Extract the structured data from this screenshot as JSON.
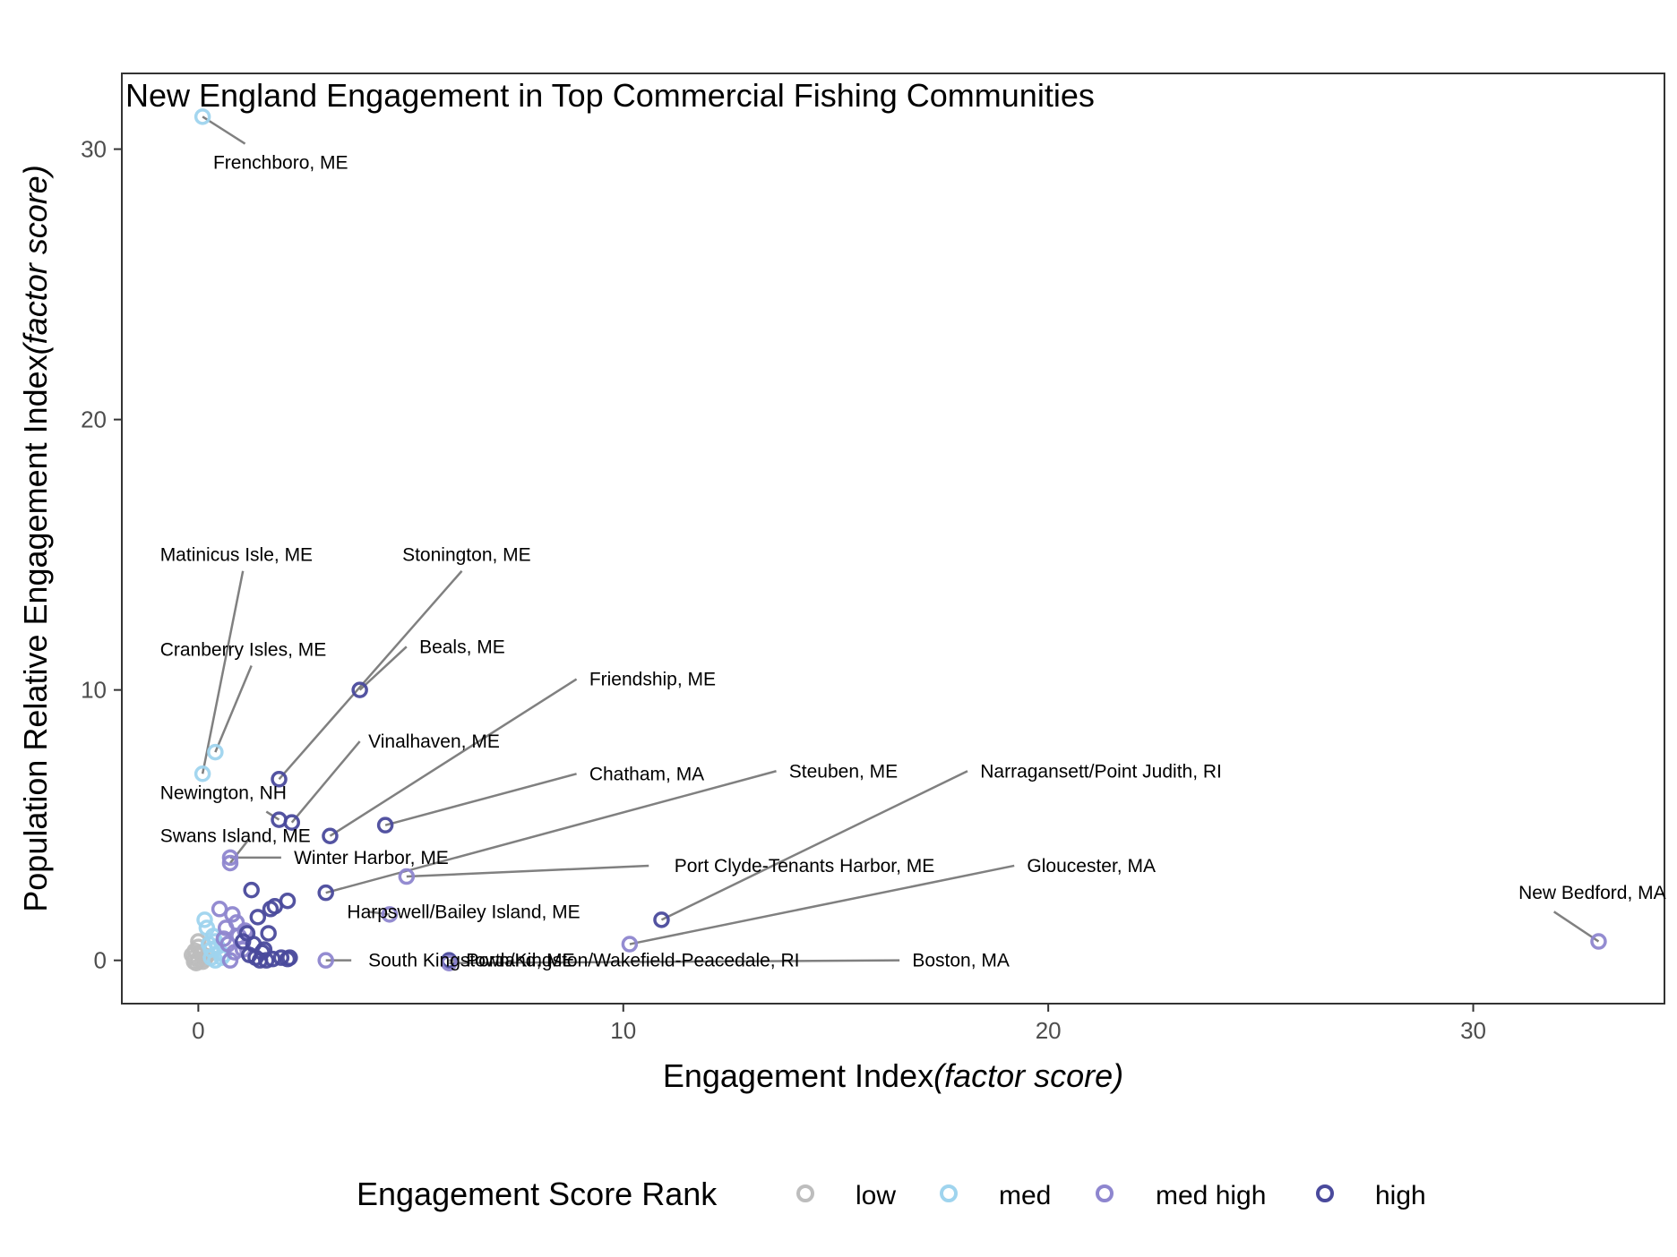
{
  "chart_data": {
    "type": "scatter",
    "title": "New England Engagement in Top Commercial Fishing Communities",
    "xlabel": "Engagement Index",
    "xlabel_italic": "(factor score)",
    "ylabel": "Population Relative Engagement Index",
    "ylabel_italic": "(factor score)",
    "xlim": [
      -1.8,
      34.5
    ],
    "ylim": [
      -1.6,
      32.8
    ],
    "x_ticks": [
      0,
      10,
      20,
      30
    ],
    "y_ticks": [
      0,
      10,
      20,
      30
    ],
    "grid": false,
    "legend_position": "bottom",
    "legend": {
      "title": "Engagement Score Rank",
      "entries": [
        {
          "key": "low",
          "label": "low",
          "color": "#bdbdbd"
        },
        {
          "key": "med",
          "label": "med",
          "color": "#9fd4ee"
        },
        {
          "key": "medhigh",
          "label": "med high",
          "color": "#8e86cf"
        },
        {
          "key": "high",
          "label": "high",
          "color": "#4a4a9c"
        }
      ]
    },
    "points": [
      {
        "x": 0.1,
        "y": 31.2,
        "rank": "med",
        "label": "Frenchboro, ME",
        "lx": 0.35,
        "ly": 29.5,
        "ax": "start",
        "cx": 1.1,
        "cy": 30.2
      },
      {
        "x": 0.1,
        "y": 6.9,
        "rank": "med",
        "label": "Matinicus Isle, ME",
        "lx": -0.9,
        "ly": 15.0,
        "ax": "start",
        "cx": 1.05,
        "cy": 14.4
      },
      {
        "x": 0.4,
        "y": 7.7,
        "rank": "med",
        "label": "Cranberry Isles, ME",
        "lx": -0.9,
        "ly": 11.5,
        "ax": "start",
        "cx": 1.25,
        "cy": 10.9
      },
      {
        "x": 3.8,
        "y": 10.0,
        "rank": "high",
        "label": "Beals, ME",
        "lx": 5.2,
        "ly": 11.6,
        "ax": "start",
        "cx": 4.9,
        "cy": 11.6
      },
      {
        "x": 1.9,
        "y": 6.7,
        "rank": "high",
        "label": "Stonington, ME",
        "lx": 4.8,
        "ly": 15.0,
        "ax": "start",
        "cx": 6.2,
        "cy": 14.4
      },
      {
        "x": 3.1,
        "y": 4.6,
        "rank": "high",
        "label": "Friendship, ME",
        "lx": 9.2,
        "ly": 10.4,
        "ax": "start",
        "cx": 8.9,
        "cy": 10.4
      },
      {
        "x": 2.2,
        "y": 5.1,
        "rank": "high",
        "label": "Vinalhaven, ME",
        "lx": 4.0,
        "ly": 8.1,
        "ax": "start",
        "cx": 3.8,
        "cy": 8.1
      },
      {
        "x": 4.4,
        "y": 5.0,
        "rank": "high",
        "label": "Chatham, MA",
        "lx": 9.2,
        "ly": 6.9,
        "ax": "start",
        "cx": 8.9,
        "cy": 6.9
      },
      {
        "x": 3.0,
        "y": 2.5,
        "rank": "high",
        "label": "Steuben, ME",
        "lx": 13.9,
        "ly": 7.0,
        "ax": "start",
        "cx": 13.6,
        "cy": 7.0
      },
      {
        "x": 10.9,
        "y": 1.5,
        "rank": "high",
        "label": "Narragansett/Point Judith, RI",
        "lx": 18.4,
        "ly": 7.0,
        "ax": "start",
        "cx": 18.1,
        "cy": 7.0
      },
      {
        "x": 1.9,
        "y": 5.2,
        "rank": "high",
        "label": "Newington, NH",
        "lx": -0.9,
        "ly": 6.2,
        "ax": "start",
        "cx": 1.6,
        "cy": 5.5
      },
      {
        "x": 0.75,
        "y": 3.6,
        "rank": "medhigh",
        "label": "Swans Island, ME",
        "lx": -0.9,
        "ly": 4.6,
        "ax": "start",
        "cx": 1.2,
        "cy": 4.5
      },
      {
        "x": 0.75,
        "y": 3.8,
        "rank": "medhigh",
        "label": "Winter Harbor, ME",
        "lx": 2.25,
        "ly": 3.8,
        "ax": "start",
        "cx": 1.95,
        "cy": 3.8
      },
      {
        "x": 4.9,
        "y": 3.1,
        "rank": "medhigh",
        "label": "Port Clyde-Tenants Harbor, ME",
        "lx": 11.2,
        "ly": 3.5,
        "ax": "start",
        "cx": 10.6,
        "cy": 3.5
      },
      {
        "x": 10.15,
        "y": 0.6,
        "rank": "medhigh",
        "label": "Gloucester, MA",
        "lx": 19.5,
        "ly": 3.5,
        "ax": "start",
        "cx": 19.2,
        "cy": 3.5
      },
      {
        "x": 4.5,
        "y": 1.7,
        "rank": "medhigh",
        "label": "Harpswell/Bailey Island, ME",
        "lx": 3.5,
        "ly": 1.8,
        "ax": "start",
        "cx": 4.0,
        "cy": 1.8
      },
      {
        "x": 32.95,
        "y": 0.7,
        "rank": "medhigh",
        "label": "New Bedford, MA",
        "lx": 32.8,
        "ly": 2.5,
        "ax": "middle",
        "cx": 31.9,
        "cy": 1.8
      },
      {
        "x": 3.0,
        "y": 0.0,
        "rank": "medhigh",
        "label": "South Kingstown/Kingston/Wakefield-Peacedale, RI",
        "lx": 4.0,
        "ly": 0.0,
        "ax": "start",
        "cx": 3.6,
        "cy": 0.0
      },
      {
        "x": 5.9,
        "y": 0.0,
        "rank": "high",
        "label": "Portland, ME",
        "lx": 6.3,
        "ly": 0.0,
        "ax": "start",
        "cx": 6.1,
        "cy": 0.0
      },
      {
        "x": 5.9,
        "y": -0.1,
        "rank": "medhigh",
        "label": "Boston, MA",
        "lx": 16.8,
        "ly": 0.0,
        "ax": "start",
        "cx": 16.5,
        "cy": 0.0
      },
      {
        "x": 0.0,
        "y": 0.0,
        "rank": "low"
      },
      {
        "x": -0.1,
        "y": 0.1,
        "rank": "low"
      },
      {
        "x": 0.05,
        "y": 0.3,
        "rank": "low"
      },
      {
        "x": -0.05,
        "y": -0.1,
        "rank": "low"
      },
      {
        "x": 0.15,
        "y": 0.05,
        "rank": "low"
      },
      {
        "x": -0.15,
        "y": 0.2,
        "rank": "low"
      },
      {
        "x": 0.0,
        "y": 0.5,
        "rank": "low"
      },
      {
        "x": 0.1,
        "y": -0.05,
        "rank": "low"
      },
      {
        "x": -0.1,
        "y": -0.05,
        "rank": "low"
      },
      {
        "x": 0.2,
        "y": 0.15,
        "rank": "low"
      },
      {
        "x": 0.0,
        "y": 0.7,
        "rank": "low"
      },
      {
        "x": 0.08,
        "y": 0.2,
        "rank": "low"
      },
      {
        "x": -0.08,
        "y": 0.35,
        "rank": "low"
      },
      {
        "x": 0.3,
        "y": 0.1,
        "rank": "med"
      },
      {
        "x": 0.4,
        "y": 0.0,
        "rank": "med"
      },
      {
        "x": 0.5,
        "y": 0.3,
        "rank": "med"
      },
      {
        "x": 0.25,
        "y": 0.6,
        "rank": "med"
      },
      {
        "x": 0.35,
        "y": 0.9,
        "rank": "med"
      },
      {
        "x": 0.2,
        "y": 1.2,
        "rank": "med"
      },
      {
        "x": 0.15,
        "y": 1.5,
        "rank": "med"
      },
      {
        "x": 0.45,
        "y": 0.5,
        "rank": "med"
      },
      {
        "x": 0.55,
        "y": 0.1,
        "rank": "med"
      },
      {
        "x": 0.3,
        "y": 0.4,
        "rank": "med"
      },
      {
        "x": 0.4,
        "y": 0.7,
        "rank": "med"
      },
      {
        "x": 0.6,
        "y": 0.2,
        "rank": "med"
      },
      {
        "x": 0.5,
        "y": 1.9,
        "rank": "medhigh"
      },
      {
        "x": 0.8,
        "y": 1.7,
        "rank": "medhigh"
      },
      {
        "x": 0.65,
        "y": 1.2,
        "rank": "medhigh"
      },
      {
        "x": 0.9,
        "y": 1.4,
        "rank": "medhigh"
      },
      {
        "x": 0.7,
        "y": 0.6,
        "rank": "medhigh"
      },
      {
        "x": 0.85,
        "y": 0.3,
        "rank": "medhigh"
      },
      {
        "x": 0.95,
        "y": 0.9,
        "rank": "medhigh"
      },
      {
        "x": 1.05,
        "y": 0.4,
        "rank": "medhigh"
      },
      {
        "x": 0.75,
        "y": 0.0,
        "rank": "medhigh"
      },
      {
        "x": 1.1,
        "y": 1.1,
        "rank": "medhigh"
      },
      {
        "x": 0.6,
        "y": 0.8,
        "rank": "medhigh"
      },
      {
        "x": 1.25,
        "y": 2.6,
        "rank": "high"
      },
      {
        "x": 1.4,
        "y": 1.6,
        "rank": "high"
      },
      {
        "x": 1.15,
        "y": 1.0,
        "rank": "high"
      },
      {
        "x": 1.7,
        "y": 1.9,
        "rank": "high"
      },
      {
        "x": 1.8,
        "y": 2.0,
        "rank": "high"
      },
      {
        "x": 2.1,
        "y": 2.2,
        "rank": "high"
      },
      {
        "x": 1.65,
        "y": 1.0,
        "rank": "high"
      },
      {
        "x": 1.3,
        "y": 0.6,
        "rank": "high"
      },
      {
        "x": 1.5,
        "y": 0.3,
        "rank": "high"
      },
      {
        "x": 1.45,
        "y": 0.0,
        "rank": "high"
      },
      {
        "x": 1.35,
        "y": 0.1,
        "rank": "high"
      },
      {
        "x": 1.6,
        "y": 0.0,
        "rank": "high"
      },
      {
        "x": 1.75,
        "y": 0.05,
        "rank": "high"
      },
      {
        "x": 1.95,
        "y": 0.1,
        "rank": "high"
      },
      {
        "x": 2.1,
        "y": 0.05,
        "rank": "high"
      },
      {
        "x": 2.15,
        "y": 0.1,
        "rank": "high"
      },
      {
        "x": 1.2,
        "y": 0.2,
        "rank": "high"
      },
      {
        "x": 1.05,
        "y": 0.7,
        "rank": "high"
      },
      {
        "x": 1.55,
        "y": 0.4,
        "rank": "high"
      }
    ]
  }
}
